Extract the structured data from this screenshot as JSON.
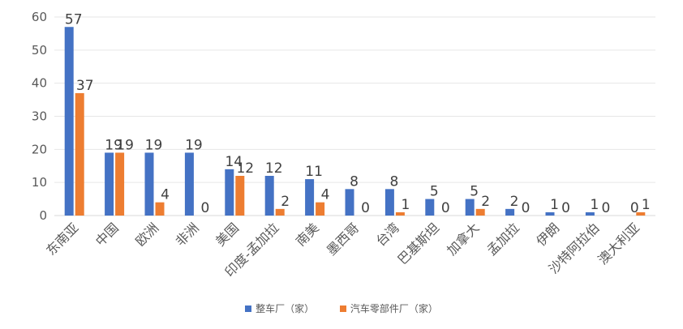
{
  "chart_data": {
    "type": "bar",
    "title": "",
    "xlabel": "",
    "ylabel": "",
    "ylim": [
      0,
      60
    ],
    "yticks": [
      0,
      10,
      20,
      30,
      40,
      50,
      60
    ],
    "grid": true,
    "legend_position": "bottom",
    "categories": [
      "东南亚",
      "中国",
      "欧洲",
      "非洲",
      "美国",
      "印度-孟加拉",
      "南美",
      "墨西哥",
      "台湾",
      "巴基斯坦",
      "加拿大",
      "孟加拉",
      "伊朗",
      "沙特阿拉伯",
      "澳大利亚"
    ],
    "series": [
      {
        "name": "整车厂（家）",
        "color": "#4472C4",
        "values": [
          57,
          19,
          19,
          19,
          14,
          12,
          11,
          8,
          8,
          5,
          5,
          2,
          1,
          1,
          0
        ]
      },
      {
        "name": "汽车零部件厂（家）",
        "color": "#ED7D31",
        "values": [
          37,
          19,
          4,
          0,
          12,
          2,
          4,
          0,
          1,
          0,
          2,
          0,
          0,
          0,
          1
        ]
      }
    ]
  }
}
